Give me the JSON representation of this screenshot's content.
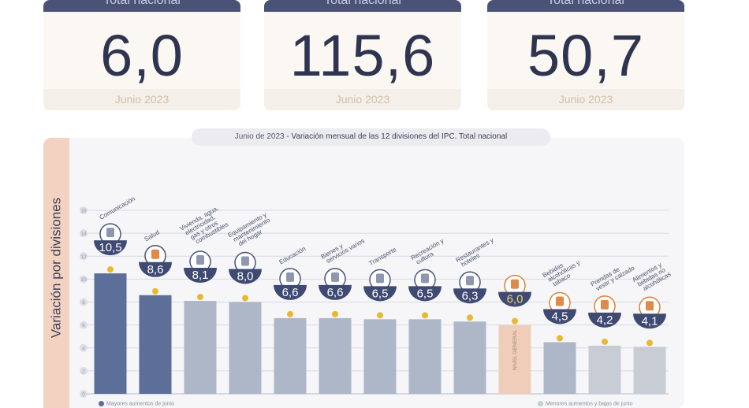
{
  "cards": [
    {
      "header": "Total nacional",
      "value": "6,0",
      "footer": "Junio 2023"
    },
    {
      "header": "Total nacional",
      "value": "115,6",
      "footer": "Junio 2023"
    },
    {
      "header": "Total nacional",
      "value": "50,7",
      "footer": "Junio 2023"
    }
  ],
  "chart_title": {
    "date": "Junio de 2023",
    "text": " - Variación mensual de las 12 divisiones del IPC. Total nacional"
  },
  "colors": {
    "navy": "#3f4a72",
    "dark_bar": "#5c6f98",
    "light_bar": "#aeb7c8",
    "lighter_bar": "#c8ccd4",
    "general_bar": "#f0cdb8",
    "dot": "#e8b830",
    "accent_value": "#f0d070"
  },
  "legend": {
    "high": "Mayores aumentos de junio",
    "low": "Menores aumentos y bajas de junio"
  },
  "chart_data": {
    "type": "bar",
    "ylabel": "Variación por divisiones",
    "ylim": [
      0,
      16
    ],
    "yticks": [
      0,
      2,
      4,
      6,
      8,
      10,
      12,
      14,
      16
    ],
    "grid": true,
    "categories": [
      "Comunicación",
      "Salud",
      "Vivienda, agua, electricidad, gas y otros combustibles",
      "Equipamiento y mantenimiento del hogar",
      "Educación",
      "Bienes y servicios varios",
      "Transporte",
      "Recreación y cultura",
      "Restaurantes y hoteles",
      "Nivel general",
      "Bebidas alcohólicas y tabaco",
      "Prendas de vestir y calzado",
      "Alimentos y bebidas no alcohólicas"
    ],
    "values": [
      10.5,
      8.6,
      8.1,
      8.0,
      6.6,
      6.6,
      6.5,
      6.5,
      6.3,
      6.0,
      4.5,
      4.2,
      4.1
    ],
    "value_labels": [
      "10,5",
      "8,6",
      "8,1",
      "8,0",
      "6,6",
      "6,6",
      "6,5",
      "6,5",
      "6,3",
      "6,0",
      "4,5",
      "4,2",
      "4,1"
    ],
    "bar_groups": [
      "high",
      "high",
      "mid",
      "mid",
      "mid",
      "mid",
      "mid",
      "mid",
      "mid",
      "general",
      "mid",
      "low",
      "low"
    ],
    "icons": [
      "phone-icon",
      "medical-cross-icon",
      "lightbulb-icon",
      "washing-machine-icon",
      "book-icon",
      "scissors-icon",
      "car-icon",
      "umbrella-icon",
      "plate-cutlery-icon",
      "shopping-basket-icon",
      "bottle-icon",
      "tshirt-icon",
      "food-icon"
    ],
    "general_bar_label": "NIVEL GENERAL"
  }
}
